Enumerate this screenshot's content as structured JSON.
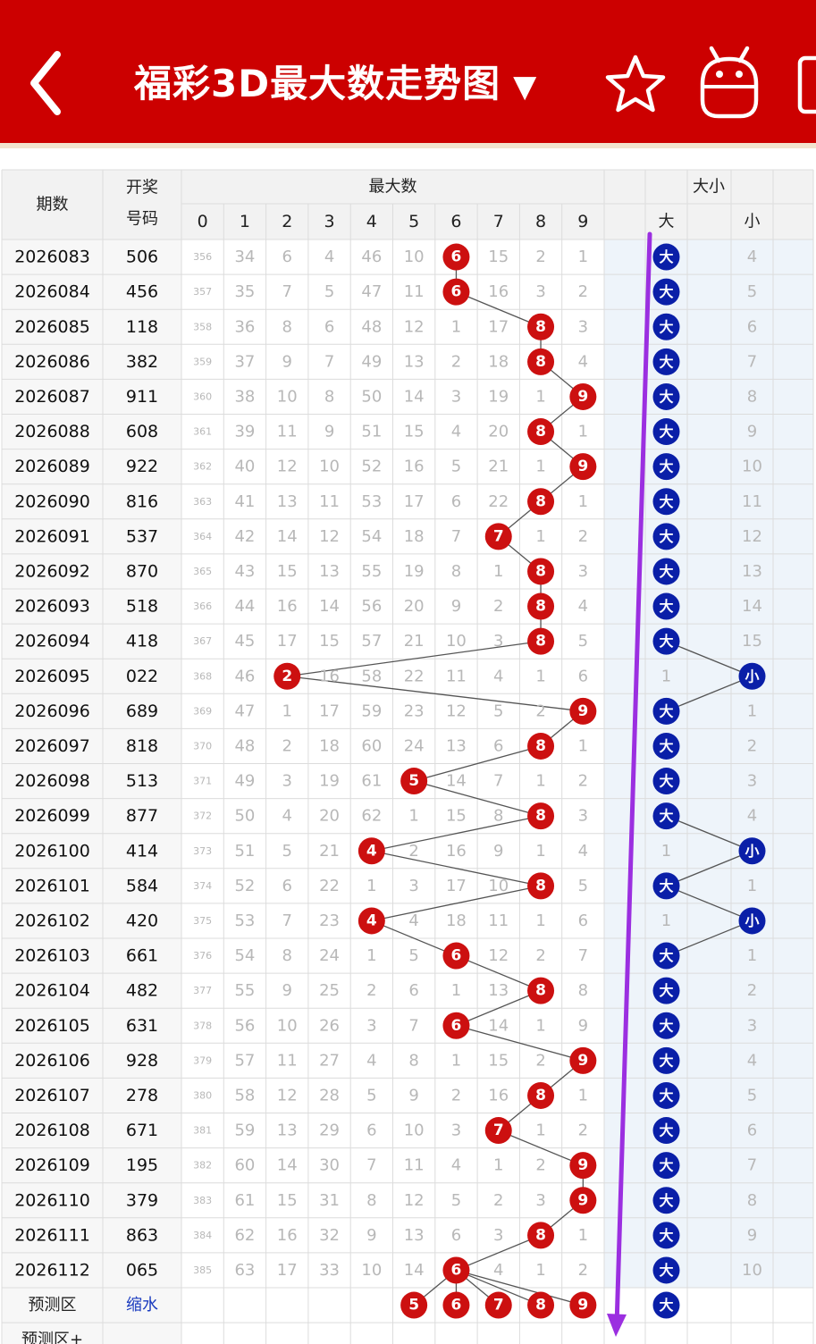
{
  "header": {
    "back_icon": "chevron-left-icon",
    "title": "福彩3D最大数走势图",
    "dropdown_icon": "▼",
    "star_icon": "star-outline-icon",
    "robot_icon": "robot-icon",
    "bg_color": "#cc0000"
  },
  "table": {
    "col_period": "期数",
    "col_number_line1": "开奖",
    "col_number_line2": "号码",
    "group_max": "最大数",
    "group_size": "大小",
    "digit_headers": [
      "0",
      "1",
      "2",
      "3",
      "4",
      "5",
      "6",
      "7",
      "8",
      "9"
    ],
    "big_label": "大",
    "small_label": "小",
    "rows": [
      {
        "period": "2026083",
        "number": "506",
        "max": 6,
        "size": "大",
        "cells": [
          "356",
          "34",
          "6",
          "4",
          "46",
          "10",
          "6",
          "15",
          "2",
          "1"
        ],
        "small_miss": "4",
        "big_miss": ""
      },
      {
        "period": "2026084",
        "number": "456",
        "max": 6,
        "size": "大",
        "cells": [
          "357",
          "35",
          "7",
          "5",
          "47",
          "11",
          "6",
          "16",
          "3",
          "2"
        ],
        "small_miss": "5",
        "big_miss": ""
      },
      {
        "period": "2026085",
        "number": "118",
        "max": 8,
        "size": "大",
        "cells": [
          "358",
          "36",
          "8",
          "6",
          "48",
          "12",
          "1",
          "17",
          "8",
          "3"
        ],
        "small_miss": "6",
        "big_miss": ""
      },
      {
        "period": "2026086",
        "number": "382",
        "max": 8,
        "size": "大",
        "cells": [
          "359",
          "37",
          "9",
          "7",
          "49",
          "13",
          "2",
          "18",
          "8",
          "4"
        ],
        "small_miss": "7",
        "big_miss": ""
      },
      {
        "period": "2026087",
        "number": "911",
        "max": 9,
        "size": "大",
        "cells": [
          "360",
          "38",
          "10",
          "8",
          "50",
          "14",
          "3",
          "19",
          "1",
          "9"
        ],
        "small_miss": "8",
        "big_miss": ""
      },
      {
        "period": "2026088",
        "number": "608",
        "max": 8,
        "size": "大",
        "cells": [
          "361",
          "39",
          "11",
          "9",
          "51",
          "15",
          "4",
          "20",
          "8",
          "1"
        ],
        "small_miss": "9",
        "big_miss": ""
      },
      {
        "period": "2026089",
        "number": "922",
        "max": 9,
        "size": "大",
        "cells": [
          "362",
          "40",
          "12",
          "10",
          "52",
          "16",
          "5",
          "21",
          "1",
          "9"
        ],
        "small_miss": "10",
        "big_miss": ""
      },
      {
        "period": "2026090",
        "number": "816",
        "max": 8,
        "size": "大",
        "cells": [
          "363",
          "41",
          "13",
          "11",
          "53",
          "17",
          "6",
          "22",
          "8",
          "1"
        ],
        "small_miss": "11",
        "big_miss": ""
      },
      {
        "period": "2026091",
        "number": "537",
        "max": 7,
        "size": "大",
        "cells": [
          "364",
          "42",
          "14",
          "12",
          "54",
          "18",
          "7",
          "7",
          "1",
          "2"
        ],
        "small_miss": "12",
        "big_miss": ""
      },
      {
        "period": "2026092",
        "number": "870",
        "max": 8,
        "size": "大",
        "cells": [
          "365",
          "43",
          "15",
          "13",
          "55",
          "19",
          "8",
          "1",
          "8",
          "3"
        ],
        "small_miss": "13",
        "big_miss": ""
      },
      {
        "period": "2026093",
        "number": "518",
        "max": 8,
        "size": "大",
        "cells": [
          "366",
          "44",
          "16",
          "14",
          "56",
          "20",
          "9",
          "2",
          "8",
          "4"
        ],
        "small_miss": "14",
        "big_miss": ""
      },
      {
        "period": "2026094",
        "number": "418",
        "max": 8,
        "size": "大",
        "cells": [
          "367",
          "45",
          "17",
          "15",
          "57",
          "21",
          "10",
          "3",
          "8",
          "5"
        ],
        "small_miss": "15",
        "big_miss": ""
      },
      {
        "period": "2026095",
        "number": "022",
        "max": 2,
        "size": "小",
        "cells": [
          "368",
          "46",
          "2",
          "16",
          "58",
          "22",
          "11",
          "4",
          "1",
          "6"
        ],
        "small_miss": "",
        "big_miss": "1"
      },
      {
        "period": "2026096",
        "number": "689",
        "max": 9,
        "size": "大",
        "cells": [
          "369",
          "47",
          "1",
          "17",
          "59",
          "23",
          "12",
          "5",
          "2",
          "9"
        ],
        "small_miss": "1",
        "big_miss": ""
      },
      {
        "period": "2026097",
        "number": "818",
        "max": 8,
        "size": "大",
        "cells": [
          "370",
          "48",
          "2",
          "18",
          "60",
          "24",
          "13",
          "6",
          "8",
          "1"
        ],
        "small_miss": "2",
        "big_miss": ""
      },
      {
        "period": "2026098",
        "number": "513",
        "max": 5,
        "size": "大",
        "cells": [
          "371",
          "49",
          "3",
          "19",
          "61",
          "5",
          "14",
          "7",
          "1",
          "2"
        ],
        "small_miss": "3",
        "big_miss": ""
      },
      {
        "period": "2026099",
        "number": "877",
        "max": 8,
        "size": "大",
        "cells": [
          "372",
          "50",
          "4",
          "20",
          "62",
          "1",
          "15",
          "8",
          "8",
          "3"
        ],
        "small_miss": "4",
        "big_miss": ""
      },
      {
        "period": "2026100",
        "number": "414",
        "max": 4,
        "size": "小",
        "cells": [
          "373",
          "51",
          "5",
          "21",
          "4",
          "2",
          "16",
          "9",
          "1",
          "4"
        ],
        "small_miss": "",
        "big_miss": "1"
      },
      {
        "period": "2026101",
        "number": "584",
        "max": 8,
        "size": "大",
        "cells": [
          "374",
          "52",
          "6",
          "22",
          "1",
          "3",
          "17",
          "10",
          "8",
          "5"
        ],
        "small_miss": "1",
        "big_miss": ""
      },
      {
        "period": "2026102",
        "number": "420",
        "max": 4,
        "size": "小",
        "cells": [
          "375",
          "53",
          "7",
          "23",
          "4",
          "4",
          "18",
          "11",
          "1",
          "6"
        ],
        "small_miss": "",
        "big_miss": "1"
      },
      {
        "period": "2026103",
        "number": "661",
        "max": 6,
        "size": "大",
        "cells": [
          "376",
          "54",
          "8",
          "24",
          "1",
          "5",
          "6",
          "12",
          "2",
          "7"
        ],
        "small_miss": "1",
        "big_miss": ""
      },
      {
        "period": "2026104",
        "number": "482",
        "max": 8,
        "size": "大",
        "cells": [
          "377",
          "55",
          "9",
          "25",
          "2",
          "6",
          "1",
          "13",
          "8",
          "8"
        ],
        "small_miss": "2",
        "big_miss": ""
      },
      {
        "period": "2026105",
        "number": "631",
        "max": 6,
        "size": "大",
        "cells": [
          "378",
          "56",
          "10",
          "26",
          "3",
          "7",
          "6",
          "14",
          "1",
          "9"
        ],
        "small_miss": "3",
        "big_miss": ""
      },
      {
        "period": "2026106",
        "number": "928",
        "max": 9,
        "size": "大",
        "cells": [
          "379",
          "57",
          "11",
          "27",
          "4",
          "8",
          "1",
          "15",
          "2",
          "9"
        ],
        "small_miss": "4",
        "big_miss": ""
      },
      {
        "period": "2026107",
        "number": "278",
        "max": 8,
        "size": "大",
        "cells": [
          "380",
          "58",
          "12",
          "28",
          "5",
          "9",
          "2",
          "16",
          "8",
          "1"
        ],
        "small_miss": "5",
        "big_miss": ""
      },
      {
        "period": "2026108",
        "number": "671",
        "max": 7,
        "size": "大",
        "cells": [
          "381",
          "59",
          "13",
          "29",
          "6",
          "10",
          "3",
          "7",
          "1",
          "2"
        ],
        "small_miss": "6",
        "big_miss": ""
      },
      {
        "period": "2026109",
        "number": "195",
        "max": 9,
        "size": "大",
        "cells": [
          "382",
          "60",
          "14",
          "30",
          "7",
          "11",
          "4",
          "1",
          "2",
          "9"
        ],
        "small_miss": "7",
        "big_miss": ""
      },
      {
        "period": "2026110",
        "number": "379",
        "max": 9,
        "size": "大",
        "cells": [
          "383",
          "61",
          "15",
          "31",
          "8",
          "12",
          "5",
          "2",
          "3",
          "9"
        ],
        "small_miss": "8",
        "big_miss": ""
      },
      {
        "period": "2026111",
        "number": "863",
        "max": 8,
        "size": "大",
        "cells": [
          "384",
          "62",
          "16",
          "32",
          "9",
          "13",
          "6",
          "3",
          "8",
          "1"
        ],
        "small_miss": "9",
        "big_miss": ""
      },
      {
        "period": "2026112",
        "number": "065",
        "max": 6,
        "size": "大",
        "cells": [
          "385",
          "63",
          "17",
          "33",
          "10",
          "14",
          "6",
          "4",
          "1",
          "2"
        ],
        "small_miss": "10",
        "big_miss": ""
      }
    ],
    "prediction_label": "预测区",
    "prediction_link": "缩水",
    "prediction_digits": [
      "5",
      "6",
      "7",
      "8",
      "9"
    ],
    "prediction_size": "大",
    "prediction_plus_label": "预测区+"
  },
  "colors": {
    "red_ball": "#cc1010",
    "blue_ball": "#0a1fa8",
    "link": "#1a3bbf",
    "annotation": "#9b2fe0"
  }
}
